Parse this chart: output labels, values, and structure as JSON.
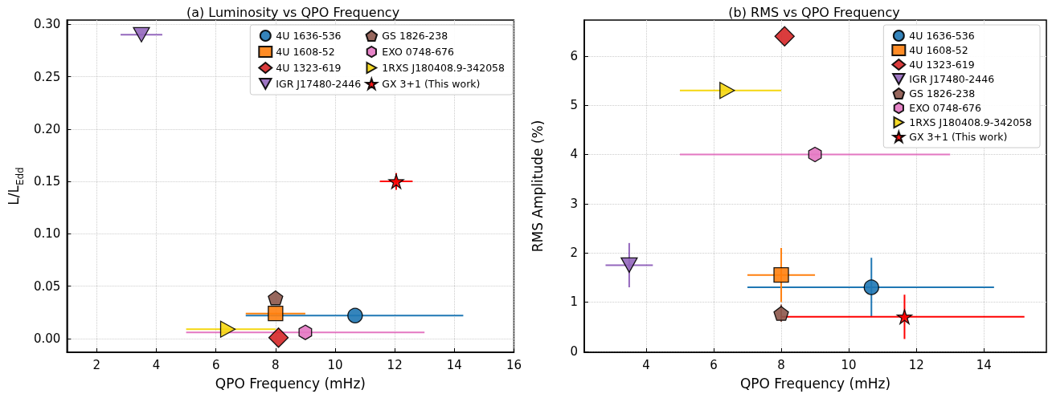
{
  "chart_data": [
    {
      "type": "scatter",
      "title": "(a) Luminosity vs QPO Frequency",
      "xlabel": "QPO Frequency (mHz)",
      "ylabel": "L/L$_{Edd}$",
      "xlim": [
        1,
        16
      ],
      "xticks": [
        2,
        4,
        6,
        8,
        10,
        12,
        14,
        16
      ],
      "ylim": [
        -0.013,
        0.304
      ],
      "yticks": [
        {
          "value": 0,
          "label": "0.00"
        },
        {
          "value": 0.05,
          "label": "0.05"
        },
        {
          "value": 0.1,
          "label": "0.10"
        },
        {
          "value": 0.15,
          "label": "0.15"
        },
        {
          "value": 0.2,
          "label": "0.20"
        },
        {
          "value": 0.25,
          "label": "0.25"
        },
        {
          "value": 0.3,
          "label": "0.30"
        }
      ],
      "grid": true,
      "legend": "top right",
      "series": [
        {
          "name": "4U 1636-536",
          "color": "#1f77b4",
          "marker": "circle",
          "x": [
            10.67
          ],
          "values": [
            0.022
          ],
          "xerrors": [
            [
              7,
              14.3
            ]
          ],
          "errors": [
            null
          ]
        },
        {
          "name": "4U 1608-52",
          "color": "#ff7f0e",
          "marker": "square",
          "x": [
            8
          ],
          "values": [
            0.024
          ],
          "xerrors": [
            [
              7,
              9
            ]
          ],
          "errors": [
            null
          ]
        },
        {
          "name": "4U 1323-619",
          "color": "#d62728",
          "marker": "diamond",
          "x": [
            8.1
          ],
          "values": [
            0.001
          ],
          "xerrors": [
            null
          ],
          "errors": [
            null
          ]
        },
        {
          "name": "IGR J17480-2446",
          "color": "#9467bd",
          "marker": "triangle-down",
          "x": [
            3.5
          ],
          "values": [
            0.29
          ],
          "xerrors": [
            [
              2.8,
              4.2
            ]
          ],
          "errors": [
            null
          ]
        },
        {
          "name": "GS 1826-238",
          "color": "#8c564b",
          "x": [
            8
          ],
          "values": [
            0.039
          ],
          "xerrors": [
            null
          ],
          "errors": [
            null
          ]
        },
        {
          "name": "EXO 0748-676",
          "color": "#e377c2",
          "x": [
            9
          ],
          "values": [
            0.006
          ],
          "xerrors": [
            [
              5,
              13
            ]
          ],
          "errors": [
            null
          ]
        },
        {
          "name": "1RXS J180408.9-342058",
          "color": "#f5d60f",
          "marker": "triangle-right",
          "x": [
            6.4
          ],
          "values": [
            0.009
          ],
          "xerrors": [
            [
              5,
              8
            ]
          ],
          "errors": [
            null
          ]
        },
        {
          "name": "GX 3+1 (This work)",
          "color": "#ff0000",
          "marker": "star",
          "x": [
            12.05
          ],
          "values": [
            0.15
          ],
          "xerrors": [
            [
              11.5,
              12.6
            ]
          ],
          "errors": [
            [
              0.142,
              0.158
            ]
          ]
        }
      ]
    },
    {
      "type": "scatter",
      "title": "(b) RMS vs QPO Frequency",
      "xlabel": "QPO Frequency (mHz)",
      "ylabel": "RMS Amplitude (%)",
      "xlim": [
        2.17,
        15.85
      ],
      "xticks": [
        4,
        6,
        8,
        10,
        12,
        14
      ],
      "ylim": [
        -0.02,
        6.73
      ],
      "yticks": [
        0,
        1,
        2,
        3,
        4,
        5,
        6
      ],
      "grid": true,
      "legend": "top right",
      "series": [
        {
          "name": "4U 1636-536",
          "color": "#1f77b4",
          "marker": "circle",
          "x": [
            10.67
          ],
          "values": [
            1.3
          ],
          "xerrors": [
            [
              7,
              14.3
            ]
          ],
          "errors": [
            [
              0.7,
              1.9
            ]
          ]
        },
        {
          "name": "4U 1608-52",
          "color": "#ff7f0e",
          "marker": "square",
          "x": [
            8
          ],
          "values": [
            1.55
          ],
          "xerrors": [
            [
              7,
              9
            ]
          ],
          "errors": [
            [
              1.0,
              2.1
            ]
          ]
        },
        {
          "name": "4U 1323-619",
          "color": "#d62728",
          "marker": "diamond",
          "x": [
            8.1
          ],
          "values": [
            6.4
          ],
          "xerrors": [
            null
          ],
          "errors": [
            null
          ]
        },
        {
          "name": "IGR J17480-2446",
          "color": "#9467bd",
          "marker": "triangle-down",
          "x": [
            3.5
          ],
          "values": [
            1.75
          ],
          "xerrors": [
            [
              2.8,
              4.2
            ]
          ],
          "errors": [
            [
              1.3,
              2.2
            ]
          ]
        },
        {
          "name": "GS 1826-238",
          "color": "#8c564b",
          "x": [
            8
          ],
          "values": [
            0.77
          ],
          "xerrors": [
            null
          ],
          "errors": [
            [
              0.6,
              0.95
            ]
          ]
        },
        {
          "name": "EXO 0748-676",
          "color": "#e377c2",
          "x": [
            9
          ],
          "values": [
            4.0
          ],
          "xerrors": [
            [
              5,
              13
            ]
          ],
          "errors": [
            null
          ]
        },
        {
          "name": "1RXS J180408.9-342058",
          "color": "#f5d60f",
          "marker": "triangle-right",
          "x": [
            6.4
          ],
          "values": [
            5.3
          ],
          "xerrors": [
            [
              5,
              8
            ]
          ],
          "errors": [
            null
          ]
        },
        {
          "name": "GX 3+1 (This work)",
          "color": "#ff0000",
          "marker": "star",
          "x": [
            11.65
          ],
          "values": [
            0.7
          ],
          "xerrors": [
            [
              8,
              15.2
            ]
          ],
          "errors": [
            [
              0.25,
              1.15
            ]
          ]
        }
      ]
    }
  ]
}
